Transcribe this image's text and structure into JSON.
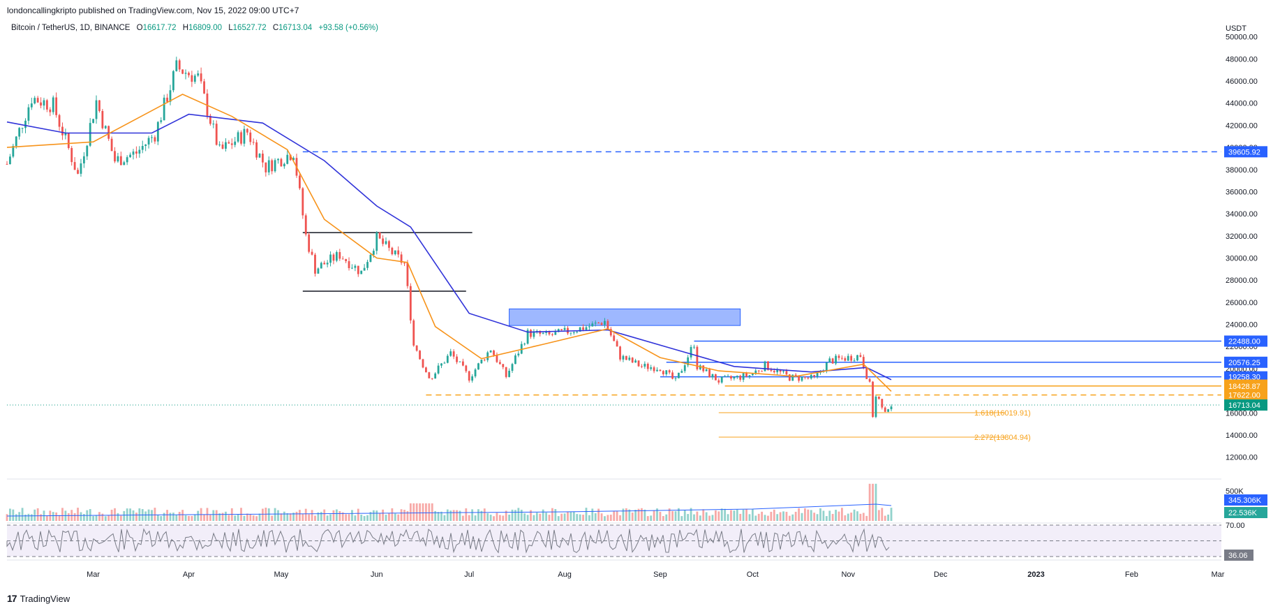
{
  "header": {
    "published": "londoncallingkripto published on TradingView.com, Nov 15, 2022 09:00 UTC+7",
    "symbol": "Bitcoin / TetherUS, 1D, BINANCE",
    "o_label": "O",
    "o_value": "16617.72",
    "h_label": "H",
    "h_value": "16809.00",
    "l_label": "L",
    "l_value": "16527.72",
    "c_label": "C",
    "c_value": "16713.04",
    "change": "+93.58 (+0.56%)"
  },
  "footer": {
    "brand": "TradingView"
  },
  "chart_data": {
    "type": "candlestick",
    "currency": "USDT",
    "price_axis": {
      "ticks": [
        12000,
        14000,
        16000,
        18000,
        20000,
        22000,
        24000,
        26000,
        28000,
        30000,
        32000,
        34000,
        36000,
        38000,
        40000,
        42000,
        44000,
        46000,
        48000,
        50000
      ],
      "ylim": [
        10400,
        50800
      ]
    },
    "x_ticks": [
      "Mar",
      "Apr",
      "May",
      "Jun",
      "Jul",
      "Aug",
      "Sep",
      "Oct",
      "Nov",
      "Dec",
      "2023",
      "Feb",
      "Mar"
    ],
    "price_path": [
      [
        "2022-02-01",
        38500
      ],
      [
        "2022-02-09",
        44500
      ],
      [
        "2022-02-16",
        43800
      ],
      [
        "2022-02-24",
        37500
      ],
      [
        "2022-03-02",
        44200
      ],
      [
        "2022-03-08",
        38800
      ],
      [
        "2022-03-15",
        39500
      ],
      [
        "2022-03-21",
        41200
      ],
      [
        "2022-03-28",
        47200
      ],
      [
        "2022-04-04",
        46300
      ],
      [
        "2022-04-11",
        39600
      ],
      [
        "2022-04-20",
        41400
      ],
      [
        "2022-04-26",
        38200
      ],
      [
        "2022-05-05",
        39600
      ],
      [
        "2022-05-09",
        32000
      ],
      [
        "2022-05-12",
        29000
      ],
      [
        "2022-05-20",
        30300
      ],
      [
        "2022-05-27",
        28700
      ],
      [
        "2022-06-01",
        31800
      ],
      [
        "2022-06-07",
        30200
      ],
      [
        "2022-06-10",
        29500
      ],
      [
        "2022-06-13",
        22400
      ],
      [
        "2022-06-18",
        19000
      ],
      [
        "2022-06-25",
        21400
      ],
      [
        "2022-07-01",
        19200
      ],
      [
        "2022-07-08",
        21800
      ],
      [
        "2022-07-13",
        19300
      ],
      [
        "2022-07-20",
        23200
      ],
      [
        "2022-07-27",
        23000
      ],
      [
        "2022-08-01",
        23300
      ],
      [
        "2022-08-10",
        23900
      ],
      [
        "2022-08-14",
        24300
      ],
      [
        "2022-08-19",
        21100
      ],
      [
        "2022-08-26",
        20200
      ],
      [
        "2022-09-01",
        20100
      ],
      [
        "2022-09-06",
        18800
      ],
      [
        "2022-09-12",
        22300
      ],
      [
        "2022-09-13",
        20200
      ],
      [
        "2022-09-20",
        18900
      ],
      [
        "2022-09-30",
        19400
      ],
      [
        "2022-10-05",
        20300
      ],
      [
        "2022-10-13",
        19200
      ],
      [
        "2022-10-21",
        19100
      ],
      [
        "2022-10-26",
        20700
      ],
      [
        "2022-11-05",
        21200
      ],
      [
        "2022-11-08",
        18500
      ],
      [
        "2022-11-09",
        15800
      ],
      [
        "2022-11-10",
        17600
      ],
      [
        "2022-11-13",
        16300
      ],
      [
        "2022-11-15",
        16713
      ]
    ],
    "ema_fast": [
      [
        "2022-02-01",
        40000
      ],
      [
        "2022-03-01",
        40500
      ],
      [
        "2022-03-30",
        44800
      ],
      [
        "2022-04-15",
        42800
      ],
      [
        "2022-05-03",
        39800
      ],
      [
        "2022-05-15",
        33500
      ],
      [
        "2022-06-01",
        30000
      ],
      [
        "2022-06-11",
        29600
      ],
      [
        "2022-06-20",
        23800
      ],
      [
        "2022-07-05",
        20900
      ],
      [
        "2022-07-25",
        22200
      ],
      [
        "2022-08-15",
        23600
      ],
      [
        "2022-09-01",
        21000
      ],
      [
        "2022-09-20",
        19800
      ],
      [
        "2022-10-15",
        19300
      ],
      [
        "2022-11-06",
        20400
      ],
      [
        "2022-11-15",
        17950
      ]
    ],
    "ema_slow": [
      [
        "2022-02-01",
        42300
      ],
      [
        "2022-02-20",
        41300
      ],
      [
        "2022-03-20",
        41300
      ],
      [
        "2022-04-01",
        43000
      ],
      [
        "2022-04-25",
        42200
      ],
      [
        "2022-05-15",
        38800
      ],
      [
        "2022-06-01",
        34700
      ],
      [
        "2022-06-12",
        32800
      ],
      [
        "2022-07-01",
        25000
      ],
      [
        "2022-07-20",
        23300
      ],
      [
        "2022-08-15",
        23500
      ],
      [
        "2022-09-05",
        21800
      ],
      [
        "2022-09-25",
        20200
      ],
      [
        "2022-10-20",
        19700
      ],
      [
        "2022-11-07",
        20100
      ],
      [
        "2022-11-15",
        19000
      ]
    ],
    "horizontal_levels": [
      {
        "value": 39605.92,
        "label": "39605.92",
        "color": "#2962ff",
        "style": "dashed"
      },
      {
        "value": 22488.0,
        "label": "22488.00",
        "color": "#2962ff",
        "style": "solid"
      },
      {
        "value": 20576.25,
        "label": "20576.25",
        "color": "#2962ff",
        "style": "solid"
      },
      {
        "value": 19258.3,
        "label": "19258.30",
        "color": "#2962ff",
        "style": "solid"
      },
      {
        "value": 18510.77,
        "label": "18510.77",
        "color": "#f7a21b",
        "style": "tag"
      },
      {
        "value": 18428.87,
        "label": "18428.87",
        "color": "#f7a21b",
        "style": "solid"
      },
      {
        "value": 17622.0,
        "label": "17622.00",
        "color": "#f7a21b",
        "style": "dashed"
      }
    ],
    "range_box": {
      "top": 32300,
      "bottom": 27000
    },
    "supply_zone": {
      "top": 25400,
      "bottom": 23900
    },
    "fib_levels": [
      {
        "ratio": "1.618",
        "value": 16019.91,
        "label": "1.618(16019.91)"
      },
      {
        "ratio": "2.272",
        "value": 13804.94,
        "label": "2.272(13804.94)"
      }
    ],
    "last_price": {
      "value": 16713.04,
      "label": "16713.04"
    },
    "volume": {
      "axis_label": "500K",
      "ma_label": "345.306K",
      "last_label": "22.536K",
      "peak": 500000
    },
    "rsi": {
      "value": 36.06,
      "label": "36.06",
      "overbought": 70,
      "mid": 50,
      "oversold": 30,
      "axis_label": "70.00"
    }
  }
}
